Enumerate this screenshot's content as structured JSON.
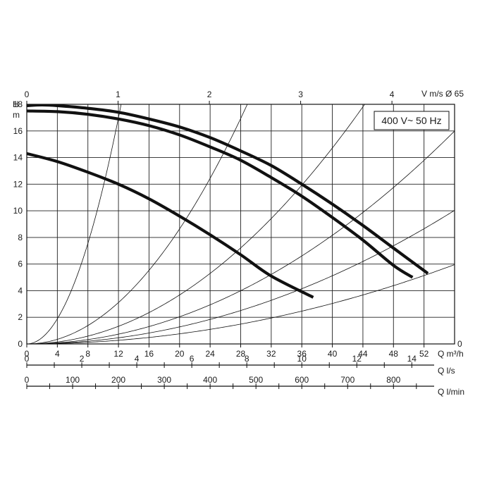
{
  "chart_data": {
    "type": "line",
    "title": "",
    "annotation": "400 V~ 50 Hz",
    "y_axis": {
      "label_top": "H",
      "label_unit": "m",
      "ticks": [
        "0",
        "2",
        "4",
        "6",
        "8",
        "10",
        "12",
        "14",
        "16",
        "18"
      ],
      "ylim": [
        0,
        18
      ]
    },
    "x_axis": {
      "label": "Q m³/h",
      "ticks": [
        "0",
        "4",
        "8",
        "12",
        "16",
        "20",
        "24",
        "28",
        "32",
        "36",
        "40",
        "44",
        "48",
        "52"
      ],
      "xlim": [
        0,
        56
      ]
    },
    "top_axis": {
      "label": "V m/s Ø 65",
      "ticks": [
        "0",
        "1",
        "2",
        "3",
        "4"
      ],
      "m3h_per_unit": 11.95
    },
    "right_axis_zero": "0",
    "secondary_axes": [
      {
        "label": "Q l/s",
        "ticks": [
          "0",
          "2",
          "4",
          "6",
          "8",
          "10",
          "12",
          "14"
        ],
        "m3h_per_unit": 3.6,
        "minor_step": 1
      },
      {
        "label": "Q l/min",
        "ticks": [
          "0",
          "100",
          "200",
          "300",
          "400",
          "500",
          "600",
          "700",
          "800"
        ],
        "m3h_per_unit": 0.06,
        "minor_step": 50
      }
    ],
    "series": [
      {
        "x": [
          0,
          2,
          4,
          8,
          12,
          16,
          20,
          24,
          28,
          32,
          36,
          40,
          44,
          48,
          52.5
        ],
        "y": [
          17.9,
          17.95,
          17.9,
          17.7,
          17.4,
          16.9,
          16.3,
          15.5,
          14.5,
          13.4,
          12.0,
          10.5,
          8.9,
          7.2,
          5.3
        ]
      },
      {
        "x": [
          0,
          4,
          8,
          12,
          16,
          20,
          24,
          28,
          32,
          36,
          40,
          44,
          48,
          50.5
        ],
        "y": [
          17.5,
          17.45,
          17.25,
          16.9,
          16.4,
          15.7,
          14.8,
          13.8,
          12.5,
          11.1,
          9.5,
          7.8,
          5.9,
          5.0
        ]
      },
      {
        "x": [
          0,
          4,
          8,
          12,
          16,
          20,
          24,
          28,
          32,
          37.5
        ],
        "y": [
          14.3,
          13.7,
          12.9,
          12.0,
          10.9,
          9.6,
          8.2,
          6.7,
          5.1,
          3.5
        ]
      }
    ],
    "system_curves_k": [
      0.118,
      0.0216,
      0.0092,
      0.0051,
      0.0032,
      0.0019
    ],
    "grid": true
  }
}
